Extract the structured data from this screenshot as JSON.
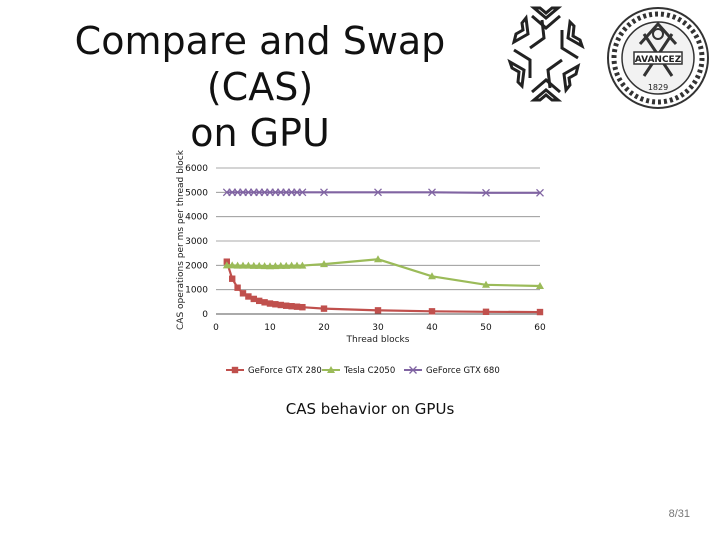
{
  "slide": {
    "title_line1": "Compare and Swap (CAS)",
    "title_line2": "on GPU",
    "caption": "CAS behavior on GPUs",
    "slide_number": "8/31",
    "seal_text": "1829",
    "seal_motto": "AVANCEZ"
  },
  "colors": {
    "gtx280": "#C0504D",
    "tesla": "#9BBB59",
    "gtx680": "#8064A2",
    "grid": "#8c8c8c",
    "text": "#111111"
  },
  "chart_data": {
    "type": "line",
    "title": "",
    "xlabel": "Thread blocks",
    "ylabel": "CAS operations per ms per thread block",
    "xlim": [
      0,
      60
    ],
    "ylim": [
      0,
      6000
    ],
    "x_ticks": [
      0,
      10,
      20,
      30,
      40,
      50,
      60
    ],
    "y_ticks": [
      0,
      1000,
      2000,
      3000,
      4000,
      5000,
      6000
    ],
    "grid": "horizontal",
    "legend_position": "bottom",
    "series": [
      {
        "name": "GeForce GTX 280",
        "marker": "square",
        "x": [
          2,
          3,
          4,
          5,
          6,
          7,
          8,
          9,
          10,
          11,
          12,
          13,
          14,
          15,
          16,
          20,
          30,
          40,
          50,
          60
        ],
        "y": [
          2150,
          1450,
          1080,
          850,
          720,
          620,
          540,
          480,
          430,
          400,
          370,
          340,
          320,
          300,
          280,
          220,
          150,
          110,
          90,
          80
        ]
      },
      {
        "name": "Tesla C2050",
        "marker": "triangle",
        "x": [
          2,
          3,
          4,
          5,
          6,
          7,
          8,
          9,
          10,
          11,
          12,
          13,
          14,
          15,
          16,
          20,
          30,
          40,
          50,
          60
        ],
        "y": [
          2000,
          2000,
          1990,
          1990,
          1990,
          1980,
          1980,
          1970,
          1960,
          1970,
          1980,
          1980,
          1990,
          1990,
          1990,
          2050,
          2250,
          1550,
          1200,
          1150
        ]
      },
      {
        "name": "GeForce GTX 680",
        "marker": "x",
        "x": [
          2,
          3,
          4,
          5,
          6,
          7,
          8,
          9,
          10,
          11,
          12,
          13,
          14,
          15,
          16,
          20,
          30,
          40,
          50,
          60
        ],
        "y": [
          5000,
          5000,
          5000,
          5000,
          5000,
          5000,
          5000,
          5000,
          5000,
          5000,
          5000,
          5000,
          5000,
          5000,
          5000,
          5000,
          5000,
          5000,
          4980,
          4980
        ]
      }
    ]
  }
}
